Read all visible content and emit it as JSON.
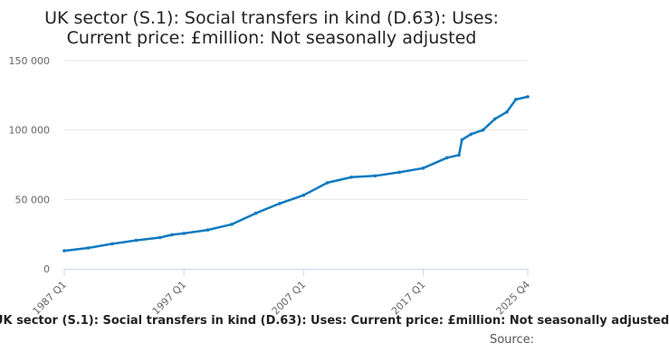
{
  "chart_data": {
    "type": "line",
    "title_line1": "UK sector (S.1): Social transfers in kind (D.63): Uses:",
    "title_line2": "Current price: £million: Not seasonally adjusted",
    "xlabel": "",
    "ylabel": "",
    "ylim": [
      0,
      150000
    ],
    "yticks": [
      0,
      50000,
      100000,
      150000
    ],
    "ytick_labels": [
      "0",
      "50 000",
      "100 000",
      "150 000"
    ],
    "xticks": [
      "1987 Q1",
      "1997 Q1",
      "2007 Q1",
      "2017 Q1",
      "2025 Q4"
    ],
    "grid": true,
    "series": [
      {
        "name": "UK sector (S.1): Social transfers in kind (D.63): Uses: Current price: £million: Not seasonally adjusted",
        "color": "#0f7ac0",
        "points": [
          [
            "1987 Q1",
            13000
          ],
          [
            "1989 Q1",
            15000
          ],
          [
            "1991 Q1",
            18000
          ],
          [
            "1993 Q1",
            20500
          ],
          [
            "1995 Q1",
            22500
          ],
          [
            "1996 Q1",
            24500
          ],
          [
            "1997 Q1",
            25500
          ],
          [
            "1999 Q1",
            28000
          ],
          [
            "2001 Q1",
            32000
          ],
          [
            "2003 Q1",
            40000
          ],
          [
            "2005 Q1",
            47000
          ],
          [
            "2007 Q1",
            53000
          ],
          [
            "2009 Q1",
            62000
          ],
          [
            "2011 Q1",
            66000
          ],
          [
            "2013 Q1",
            67000
          ],
          [
            "2015 Q1",
            69500
          ],
          [
            "2017 Q1",
            72500
          ],
          [
            "2019 Q1",
            80000
          ],
          [
            "2020 Q1",
            82000
          ],
          [
            "2020 Q2",
            93000
          ],
          [
            "2021 Q1",
            97000
          ],
          [
            "2022 Q1",
            100000
          ],
          [
            "2023 Q1",
            108000
          ],
          [
            "2024 Q1",
            113000
          ],
          [
            "2024 Q4",
            122000
          ],
          [
            "2025 Q4",
            124000
          ]
        ]
      }
    ]
  },
  "footer": {
    "legend_text": "UK sector (S.1): Social transfers in kind (D.63): Uses: Current price: £million: Not seasonally adjusted",
    "source": "Source:"
  }
}
